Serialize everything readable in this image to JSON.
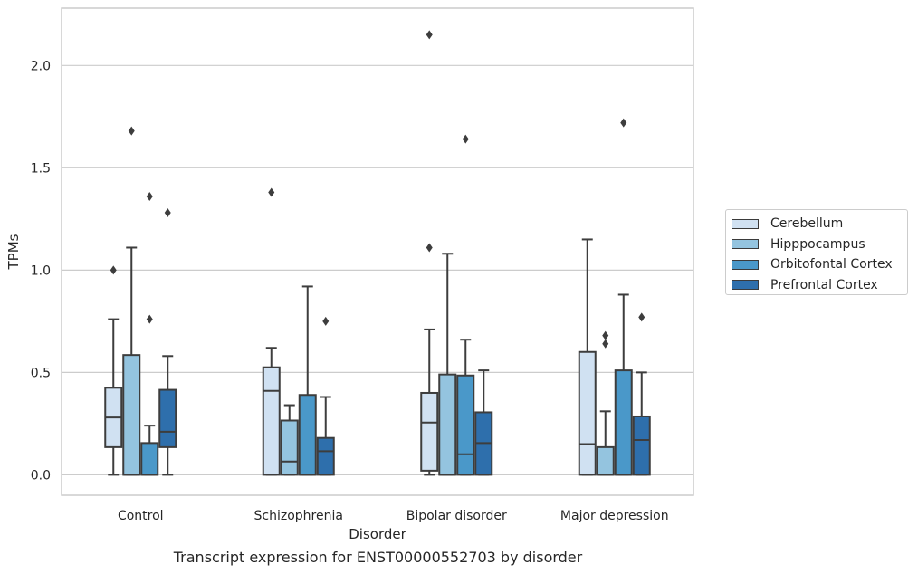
{
  "caption": "Transcript expression for ENST00000552703 by disorder",
  "chart_data": {
    "type": "box",
    "title": "",
    "xlabel": "Disorder",
    "ylabel": "TPMs",
    "ylim": [
      -0.1,
      2.28
    ],
    "yticks": [
      0.0,
      0.5,
      1.0,
      1.5,
      2.0
    ],
    "ytick_labels": [
      "0.0",
      "0.5",
      "1.0",
      "1.5",
      "2.0"
    ],
    "grid": true,
    "legend_position": "right",
    "categories": [
      "Control",
      "Schizophrenia",
      "Bipolar disorder",
      "Major depression"
    ],
    "series": [
      {
        "name": "Cerebellum",
        "color": "#d0e1f2",
        "boxes": [
          {
            "whisker_low": 0.0,
            "q1": 0.135,
            "median": 0.28,
            "q3": 0.425,
            "whisker_high": 0.76,
            "outliers": [
              1.0
            ]
          },
          {
            "whisker_low": 0.0,
            "q1": 0.0,
            "median": 0.41,
            "q3": 0.525,
            "whisker_high": 0.62,
            "outliers": [
              1.38
            ]
          },
          {
            "whisker_low": 0.0,
            "q1": 0.02,
            "median": 0.255,
            "q3": 0.4,
            "whisker_high": 0.71,
            "outliers": [
              1.11,
              2.15
            ]
          },
          {
            "whisker_low": 0.0,
            "q1": 0.0,
            "median": 0.15,
            "q3": 0.6,
            "whisker_high": 1.15,
            "outliers": []
          }
        ]
      },
      {
        "name": "Hipppocampus",
        "color": "#94c4df",
        "boxes": [
          {
            "whisker_low": 0.0,
            "q1": 0.0,
            "median": 0.0,
            "q3": 0.585,
            "whisker_high": 1.11,
            "outliers": [
              1.68
            ]
          },
          {
            "whisker_low": 0.0,
            "q1": 0.0,
            "median": 0.065,
            "q3": 0.265,
            "whisker_high": 0.34,
            "outliers": []
          },
          {
            "whisker_low": 0.0,
            "q1": 0.0,
            "median": 0.0,
            "q3": 0.49,
            "whisker_high": 1.08,
            "outliers": []
          },
          {
            "whisker_low": 0.0,
            "q1": 0.0,
            "median": 0.0,
            "q3": 0.135,
            "whisker_high": 0.31,
            "outliers": [
              0.64,
              0.68
            ]
          }
        ]
      },
      {
        "name": "Orbitofontal Cortex",
        "color": "#4a98c9",
        "boxes": [
          {
            "whisker_low": 0.0,
            "q1": 0.0,
            "median": 0.0,
            "q3": 0.155,
            "whisker_high": 0.24,
            "outliers": [
              0.76,
              1.36
            ]
          },
          {
            "whisker_low": 0.0,
            "q1": 0.0,
            "median": 0.0,
            "q3": 0.39,
            "whisker_high": 0.92,
            "outliers": []
          },
          {
            "whisker_low": 0.0,
            "q1": 0.0,
            "median": 0.1,
            "q3": 0.485,
            "whisker_high": 0.66,
            "outliers": [
              1.64
            ]
          },
          {
            "whisker_low": 0.0,
            "q1": 0.0,
            "median": 0.0,
            "q3": 0.51,
            "whisker_high": 0.88,
            "outliers": [
              1.72
            ]
          }
        ]
      },
      {
        "name": "Prefrontal Cortex",
        "color": "#2e6fac",
        "boxes": [
          {
            "whisker_low": 0.0,
            "q1": 0.135,
            "median": 0.21,
            "q3": 0.415,
            "whisker_high": 0.58,
            "outliers": [
              1.28
            ]
          },
          {
            "whisker_low": 0.0,
            "q1": 0.0,
            "median": 0.115,
            "q3": 0.18,
            "whisker_high": 0.38,
            "outliers": [
              0.75
            ]
          },
          {
            "whisker_low": 0.0,
            "q1": 0.0,
            "median": 0.155,
            "q3": 0.305,
            "whisker_high": 0.51,
            "outliers": []
          },
          {
            "whisker_low": 0.0,
            "q1": 0.0,
            "median": 0.17,
            "q3": 0.285,
            "whisker_high": 0.5,
            "outliers": [
              0.77
            ]
          }
        ]
      }
    ]
  }
}
